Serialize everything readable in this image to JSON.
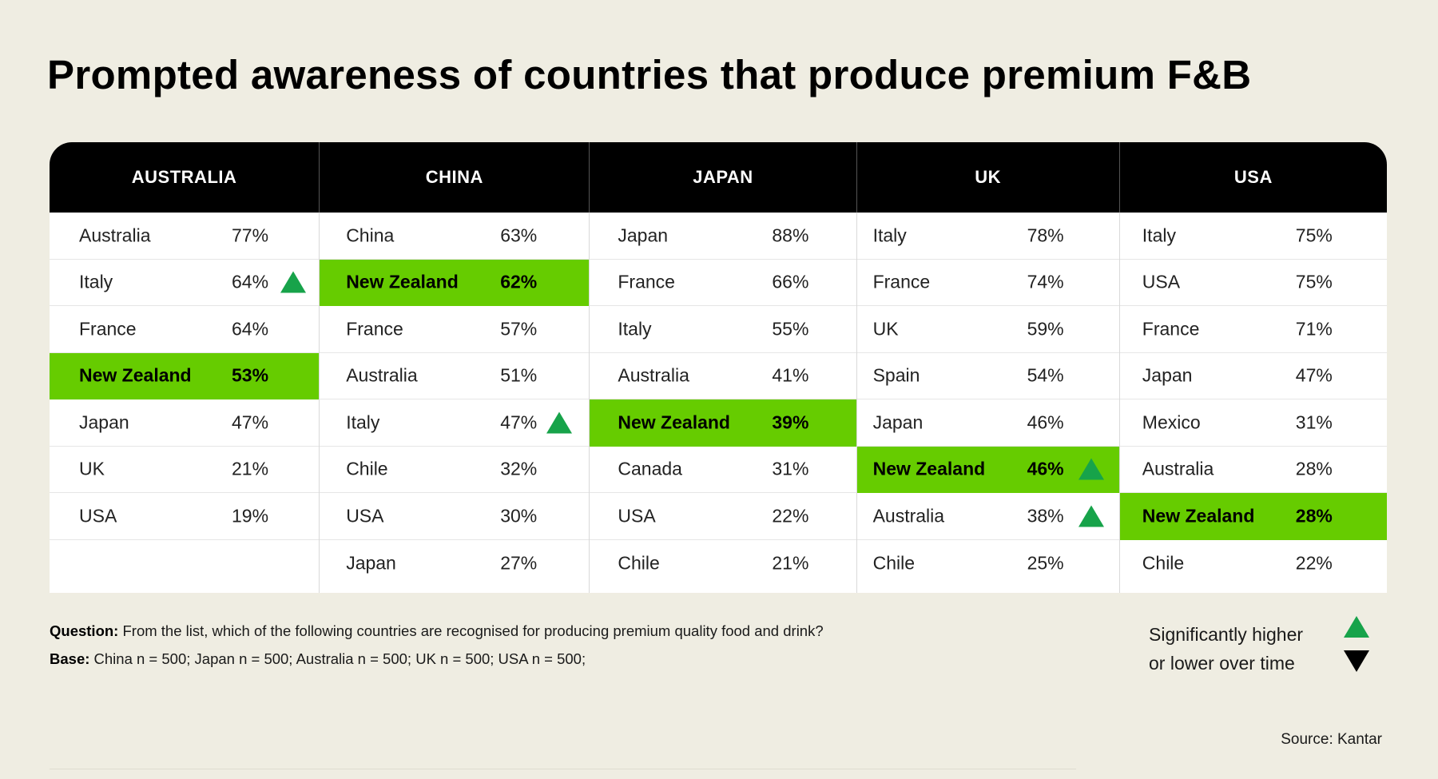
{
  "title": "Prompted awareness of countries that produce premium F&B",
  "chart_data": {
    "type": "table",
    "columns": [
      {
        "header": "AUSTRALIA",
        "rows": [
          {
            "country": "Australia",
            "value": "77%"
          },
          {
            "country": "Italy",
            "value": "64%",
            "trend": "up"
          },
          {
            "country": "France",
            "value": "64%"
          },
          {
            "country": "New Zealand",
            "value": "53%",
            "highlight": true
          },
          {
            "country": "Japan",
            "value": "47%"
          },
          {
            "country": "UK",
            "value": "21%"
          },
          {
            "country": "USA",
            "value": "19%"
          },
          {
            "country": "",
            "value": ""
          }
        ]
      },
      {
        "header": "CHINA",
        "rows": [
          {
            "country": "China",
            "value": "63%"
          },
          {
            "country": "New Zealand",
            "value": "62%",
            "highlight": true
          },
          {
            "country": "France",
            "value": "57%"
          },
          {
            "country": "Australia",
            "value": "51%"
          },
          {
            "country": "Italy",
            "value": "47%",
            "trend": "up"
          },
          {
            "country": "Chile",
            "value": "32%"
          },
          {
            "country": "USA",
            "value": "30%"
          },
          {
            "country": "Japan",
            "value": "27%"
          }
        ]
      },
      {
        "header": "JAPAN",
        "rows": [
          {
            "country": "Japan",
            "value": "88%"
          },
          {
            "country": "France",
            "value": "66%"
          },
          {
            "country": "Italy",
            "value": "55%"
          },
          {
            "country": "Australia",
            "value": "41%"
          },
          {
            "country": "New Zealand",
            "value": "39%",
            "highlight": true
          },
          {
            "country": "Canada",
            "value": "31%"
          },
          {
            "country": "USA",
            "value": "22%"
          },
          {
            "country": "Chile",
            "value": "21%"
          }
        ]
      },
      {
        "header": "UK",
        "rows": [
          {
            "country": "Italy",
            "value": "78%"
          },
          {
            "country": "France",
            "value": "74%"
          },
          {
            "country": "UK",
            "value": "59%"
          },
          {
            "country": "Spain",
            "value": "54%"
          },
          {
            "country": "Japan",
            "value": "46%"
          },
          {
            "country": "New Zealand",
            "value": "46%",
            "highlight": true,
            "trend": "up"
          },
          {
            "country": "Australia",
            "value": "38%",
            "trend": "up"
          },
          {
            "country": "Chile",
            "value": "25%"
          }
        ]
      },
      {
        "header": "USA",
        "rows": [
          {
            "country": "Italy",
            "value": "75%"
          },
          {
            "country": "USA",
            "value": "75%"
          },
          {
            "country": "France",
            "value": "71%"
          },
          {
            "country": "Japan",
            "value": "47%"
          },
          {
            "country": "Mexico",
            "value": "31%"
          },
          {
            "country": "Australia",
            "value": "28%"
          },
          {
            "country": "New Zealand",
            "value": "28%",
            "highlight": true
          },
          {
            "country": "Chile",
            "value": "22%"
          }
        ]
      }
    ]
  },
  "footnotes": {
    "question_label": "Question:",
    "question_text": "From the list, which of the following countries are recognised for producing premium quality food and drink?",
    "base_label": "Base:",
    "base_text": "China n = 500; Japan n = 500; Australia n = 500; UK n = 500; USA n = 500;"
  },
  "legend": {
    "line1": "Significantly higher",
    "line2": "or lower over time",
    "up_icon": "triangle-up-icon",
    "down_icon": "triangle-down-icon"
  },
  "source": "Source: Kantar",
  "colors": {
    "background": "#efede2",
    "header": "#000000",
    "highlight": "#66cc00",
    "trend_up": "#17a34a"
  }
}
